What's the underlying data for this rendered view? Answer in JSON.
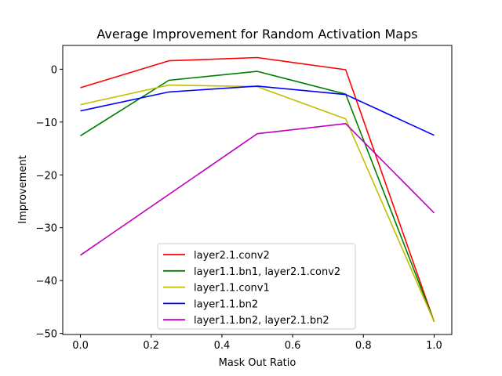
{
  "chart_data": {
    "type": "line",
    "title": "Average Improvement for Random Activation Maps",
    "xlabel": "Mask Out Ratio",
    "ylabel": "Improvement",
    "xlim": [
      -0.05,
      1.05
    ],
    "ylim": [
      -50.2,
      4.5
    ],
    "xticks": [
      0.0,
      0.2,
      0.4,
      0.6,
      0.8,
      1.0
    ],
    "xtick_labels": [
      "0.0",
      "0.2",
      "0.4",
      "0.6",
      "0.8",
      "1.0"
    ],
    "yticks": [
      0,
      -10,
      -20,
      -30,
      -40,
      -50
    ],
    "ytick_labels": [
      "0",
      "−10",
      "−20",
      "−30",
      "−40",
      "−50"
    ],
    "x": [
      0.0,
      0.25,
      0.5,
      0.75,
      1.0
    ],
    "grid": false,
    "legend_position": "lower-center",
    "series": [
      {
        "name": "layer2.1.conv2",
        "color": "#ff0000",
        "values": [
          -3.5,
          1.6,
          2.2,
          -0.1,
          -47.8
        ]
      },
      {
        "name": "layer1.1.bn1, layer2.1.conv2",
        "color": "#008000",
        "values": [
          -12.6,
          -2.1,
          -0.4,
          -4.7,
          -47.8
        ]
      },
      {
        "name": "layer1.1.conv1",
        "color": "#bfbf00",
        "values": [
          -6.7,
          -3.0,
          -3.3,
          -9.4,
          -47.8
        ]
      },
      {
        "name": "layer1.1.bn2",
        "color": "#0000ff",
        "values": [
          -7.9,
          -4.3,
          -3.2,
          -4.8,
          -12.5
        ]
      },
      {
        "name": "layer1.1.bn2, layer2.1.bn2",
        "color": "#bf00bf",
        "values": [
          -35.2,
          null,
          -12.2,
          -10.3,
          -27.2
        ]
      }
    ]
  }
}
